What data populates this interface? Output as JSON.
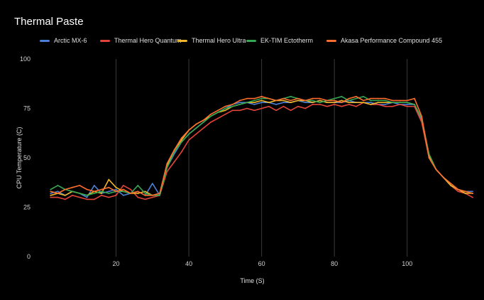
{
  "chart_data": {
    "type": "line",
    "title": "Thermal Paste",
    "xlabel": "Time (S)",
    "ylabel": "CPU Temperature (C)",
    "xlim": [
      0,
      118
    ],
    "ylim": [
      0,
      100
    ],
    "xticks": [
      20,
      40,
      60,
      80,
      100
    ],
    "yticks": [
      0,
      25,
      50,
      75,
      100
    ],
    "grid": "vertical",
    "legend_position": "top",
    "background": "#000000",
    "series": [
      {
        "name": "Arctic MX-6",
        "color": "#4a7fd6",
        "x": [
          2,
          4,
          6,
          8,
          10,
          12,
          14,
          16,
          18,
          20,
          22,
          24,
          26,
          28,
          30,
          32,
          34,
          36,
          38,
          40,
          42,
          44,
          46,
          48,
          50,
          52,
          54,
          56,
          58,
          60,
          62,
          64,
          66,
          68,
          70,
          72,
          74,
          76,
          78,
          80,
          82,
          84,
          86,
          88,
          90,
          92,
          94,
          96,
          98,
          100,
          102,
          104,
          106,
          108,
          110,
          112,
          114,
          116,
          118
        ],
        "y": [
          32,
          33,
          31,
          33,
          32,
          30,
          36,
          32,
          33,
          34,
          31,
          32,
          33,
          31,
          37,
          31,
          45,
          52,
          58,
          62,
          65,
          68,
          71,
          73,
          75,
          77,
          78,
          78,
          77,
          78,
          78,
          77,
          78,
          78,
          79,
          78,
          78,
          79,
          78,
          78,
          78,
          79,
          78,
          78,
          78,
          77,
          77,
          78,
          77,
          77,
          77,
          69,
          51,
          44,
          40,
          36,
          34,
          33,
          33
        ]
      },
      {
        "name": "Thermal Hero Quantum",
        "color": "#e0443a",
        "x": [
          2,
          4,
          6,
          8,
          10,
          12,
          14,
          16,
          18,
          20,
          22,
          24,
          26,
          28,
          30,
          32,
          34,
          36,
          38,
          40,
          42,
          44,
          46,
          48,
          50,
          52,
          54,
          56,
          58,
          60,
          62,
          64,
          66,
          68,
          70,
          72,
          74,
          76,
          78,
          80,
          82,
          84,
          86,
          88,
          90,
          92,
          94,
          96,
          98,
          100,
          102,
          104,
          106,
          108,
          110,
          112,
          114,
          116,
          118
        ],
        "y": [
          30,
          30,
          29,
          31,
          30,
          29,
          29,
          31,
          30,
          31,
          36,
          34,
          30,
          29,
          30,
          31,
          43,
          48,
          53,
          59,
          62,
          65,
          68,
          70,
          72,
          74,
          74,
          75,
          74,
          75,
          76,
          74,
          76,
          74,
          76,
          75,
          77,
          77,
          76,
          77,
          76,
          77,
          76,
          78,
          77,
          77,
          76,
          76,
          77,
          76,
          76,
          68,
          50,
          44,
          40,
          36,
          33,
          32,
          30
        ]
      },
      {
        "name": "Thermal Hero Ultra",
        "color": "#f0b62a",
        "x": [
          2,
          4,
          6,
          8,
          10,
          12,
          14,
          16,
          18,
          20,
          22,
          24,
          26,
          28,
          30,
          32,
          34,
          36,
          38,
          40,
          42,
          44,
          46,
          48,
          50,
          52,
          54,
          56,
          58,
          60,
          62,
          64,
          66,
          68,
          70,
          72,
          74,
          76,
          78,
          80,
          82,
          84,
          86,
          88,
          90,
          92,
          94,
          96,
          98,
          100,
          102,
          104,
          106,
          108,
          110,
          112,
          114,
          116,
          118
        ],
        "y": [
          31,
          32,
          31,
          33,
          32,
          31,
          33,
          32,
          39,
          35,
          33,
          32,
          32,
          33,
          31,
          32,
          46,
          54,
          59,
          64,
          67,
          69,
          71,
          73,
          74,
          76,
          77,
          78,
          78,
          79,
          78,
          79,
          79,
          78,
          79,
          79,
          78,
          79,
          78,
          78,
          79,
          78,
          78,
          78,
          77,
          78,
          78,
          78,
          78,
          78,
          77,
          70,
          51,
          44,
          40,
          36,
          34,
          32,
          32
        ]
      },
      {
        "name": "EK-TIM Ectotherm",
        "color": "#34a853",
        "x": [
          2,
          4,
          6,
          8,
          10,
          12,
          14,
          16,
          18,
          20,
          22,
          24,
          26,
          28,
          30,
          32,
          34,
          36,
          38,
          40,
          42,
          44,
          46,
          48,
          50,
          52,
          54,
          56,
          58,
          60,
          62,
          64,
          66,
          68,
          70,
          72,
          74,
          76,
          78,
          80,
          82,
          84,
          86,
          88,
          90,
          92,
          94,
          96,
          98,
          100,
          102,
          104,
          106,
          108,
          110,
          112,
          114,
          116,
          118
        ],
        "y": [
          34,
          36,
          34,
          33,
          32,
          31,
          32,
          33,
          32,
          33,
          33,
          32,
          36,
          32,
          31,
          31,
          45,
          53,
          58,
          62,
          65,
          68,
          71,
          73,
          75,
          76,
          77,
          78,
          79,
          80,
          80,
          79,
          80,
          81,
          80,
          79,
          79,
          78,
          79,
          80,
          81,
          79,
          80,
          81,
          79,
          79,
          79,
          78,
          78,
          78,
          77,
          70,
          52,
          44,
          40,
          37,
          34,
          33,
          32
        ]
      },
      {
        "name": "Akasa Performance Compound 455",
        "color": "#ff6d2e",
        "x": [
          2,
          4,
          6,
          8,
          10,
          12,
          14,
          16,
          18,
          20,
          22,
          24,
          26,
          28,
          30,
          32,
          34,
          36,
          38,
          40,
          42,
          44,
          46,
          48,
          50,
          52,
          54,
          56,
          58,
          60,
          62,
          64,
          66,
          68,
          70,
          72,
          74,
          76,
          78,
          80,
          82,
          84,
          86,
          88,
          90,
          92,
          94,
          96,
          98,
          100,
          102,
          104,
          106,
          108,
          110,
          112,
          114,
          116,
          118
        ],
        "y": [
          33,
          32,
          34,
          35,
          36,
          34,
          33,
          34,
          35,
          33,
          34,
          32,
          33,
          31,
          31,
          32,
          47,
          54,
          60,
          64,
          67,
          69,
          72,
          74,
          76,
          77,
          79,
          80,
          80,
          81,
          80,
          79,
          80,
          79,
          80,
          79,
          80,
          80,
          79,
          79,
          78,
          80,
          81,
          79,
          80,
          80,
          80,
          79,
          79,
          79,
          80,
          71,
          50,
          44,
          40,
          37,
          34,
          33,
          32
        ]
      }
    ]
  }
}
